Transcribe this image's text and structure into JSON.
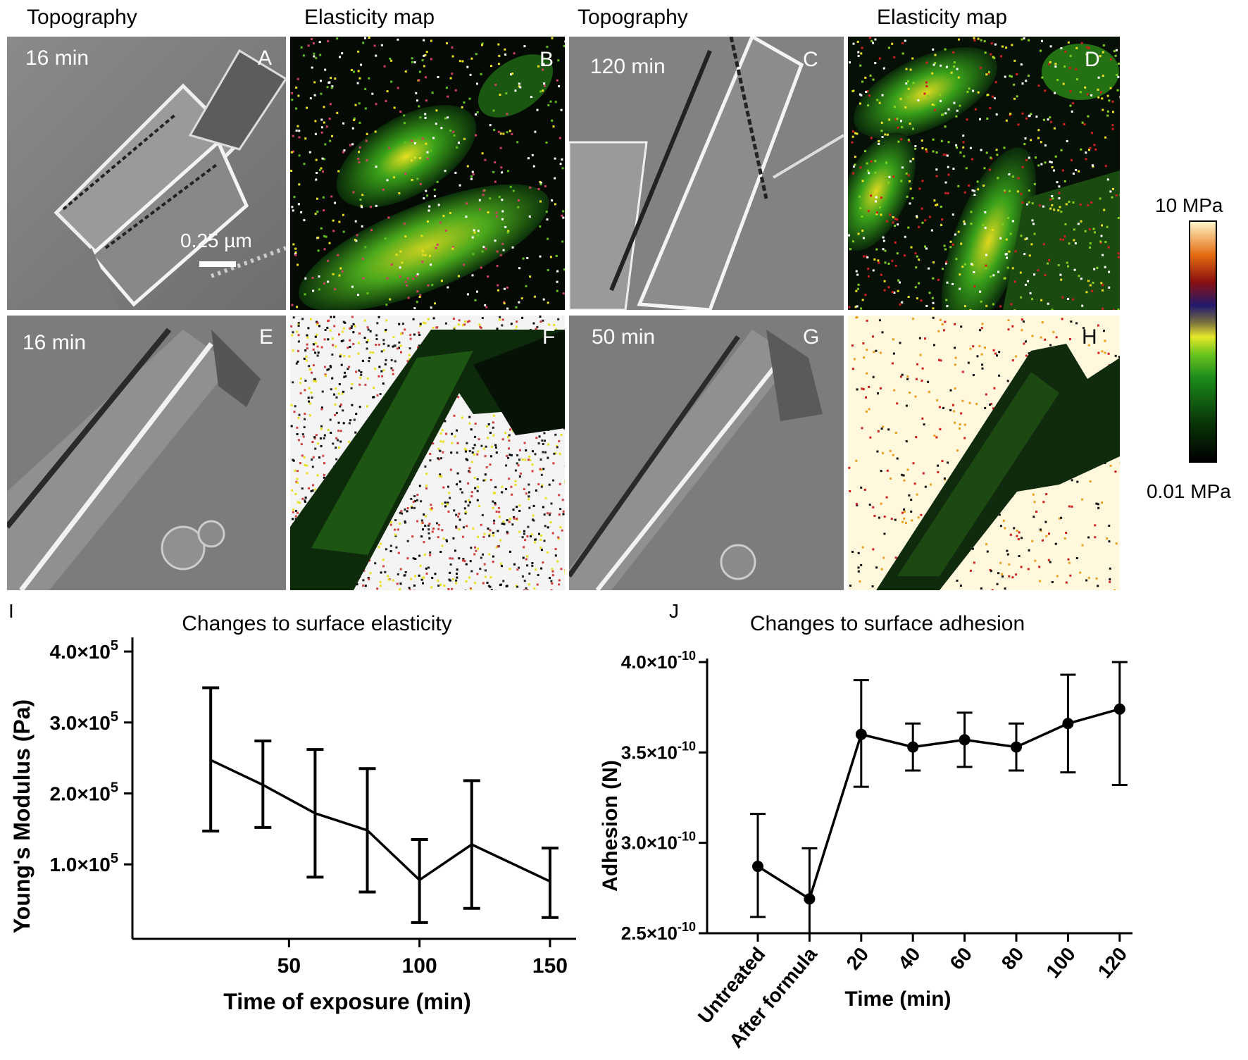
{
  "headers": [
    "Topography",
    "Elasticity map",
    "Topography",
    "Elasticity map"
  ],
  "panels": [
    {
      "letter": "A",
      "time": "16 min",
      "kind": "topo"
    },
    {
      "letter": "B",
      "time": "",
      "kind": "elastic"
    },
    {
      "letter": "C",
      "time": "120 min",
      "kind": "topo"
    },
    {
      "letter": "D",
      "time": "",
      "kind": "elastic"
    },
    {
      "letter": "E",
      "time": "16 min",
      "kind": "topo"
    },
    {
      "letter": "F",
      "time": "",
      "kind": "elastic"
    },
    {
      "letter": "G",
      "time": "50 min",
      "kind": "topo"
    },
    {
      "letter": "H",
      "time": "",
      "kind": "elastic"
    }
  ],
  "scale_bar_label": "0.25 µm",
  "colorbar": {
    "max_label": "10 MPa",
    "min_label": "0.01 MPa"
  },
  "colors": {
    "line": "#000000",
    "elastic_green": "#2e9e1a",
    "elastic_yellow": "#e8e020",
    "background_cream": "#fff8dc"
  },
  "chart_data": [
    {
      "letter": "I",
      "type": "line",
      "title": "Changes to surface elasticity",
      "xlabel": "Time of exposure (min)",
      "ylabel": "Young's Modulus (Pa)",
      "x": [
        20,
        40,
        60,
        80,
        100,
        120,
        150
      ],
      "y": [
        247000,
        212000,
        172000,
        148000,
        78000,
        128000,
        76000
      ],
      "err_upper": [
        349000,
        274000,
        262000,
        235000,
        135000,
        218000,
        123000
      ],
      "err_lower": [
        147000,
        152000,
        82000,
        61000,
        18000,
        38000,
        25000
      ],
      "xlim": [
        -10,
        160
      ],
      "ylim": [
        -5000,
        410000
      ],
      "xticks": [
        {
          "v": 50,
          "label": "50"
        },
        {
          "v": 100,
          "label": "100"
        },
        {
          "v": 150,
          "label": "150"
        }
      ],
      "yticks": [
        {
          "v": 100000,
          "mant": "1.0×10",
          "exp": "5"
        },
        {
          "v": 200000,
          "mant": "2.0×10",
          "exp": "5"
        },
        {
          "v": 300000,
          "mant": "3.0×10",
          "exp": "5"
        },
        {
          "v": 400000,
          "mant": "4.0×10",
          "exp": "5"
        }
      ],
      "grid": false,
      "markers": false
    },
    {
      "letter": "J",
      "type": "line",
      "title": "Changes to surface adhesion",
      "xlabel": "Time (min)",
      "ylabel": "Adhesion (N)",
      "categories": [
        "Untreated",
        "After formula",
        "20",
        "40",
        "60",
        "80",
        "100",
        "120"
      ],
      "y": [
        2.87e-10,
        2.69e-10,
        3.6e-10,
        3.53e-10,
        3.57e-10,
        3.53e-10,
        3.66e-10,
        3.74e-10
      ],
      "err_upper": [
        3.16e-10,
        2.97e-10,
        3.9e-10,
        3.66e-10,
        3.72e-10,
        3.66e-10,
        3.93e-10,
        4e-10
      ],
      "err_lower": [
        2.59e-10,
        2.5e-10,
        3.31e-10,
        3.4e-10,
        3.42e-10,
        3.4e-10,
        3.39e-10,
        3.32e-10
      ],
      "ylim": [
        2.5e-10,
        4e-10
      ],
      "yticks": [
        {
          "v": 2.5e-10,
          "mant": "2.5×10",
          "exp": "-10"
        },
        {
          "v": 3e-10,
          "mant": "3.0×10",
          "exp": "-10"
        },
        {
          "v": 3.5e-10,
          "mant": "3.5×10",
          "exp": "-10"
        },
        {
          "v": 4e-10,
          "mant": "4.0×10",
          "exp": "-10"
        }
      ],
      "grid": false,
      "markers": true
    }
  ]
}
